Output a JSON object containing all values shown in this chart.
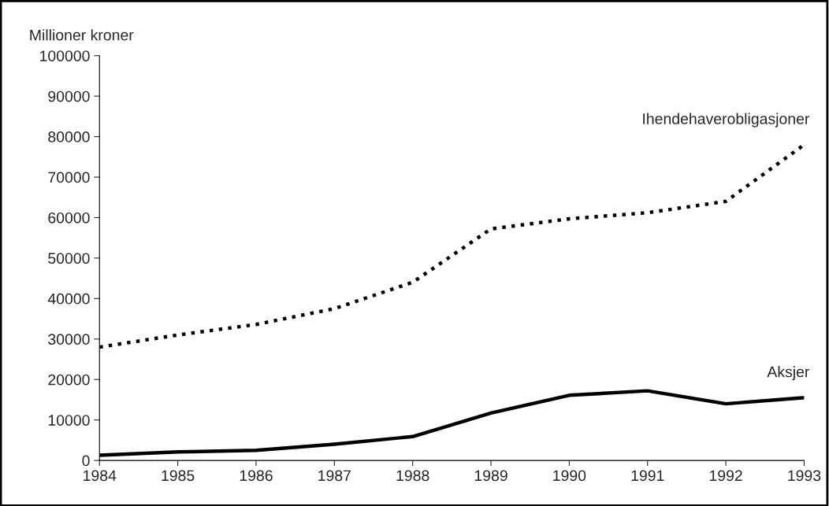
{
  "chart_data": {
    "type": "line",
    "ylabel": "Millioner kroner",
    "x": [
      1984,
      1985,
      1986,
      1987,
      1988,
      1989,
      1990,
      1991,
      1992,
      1993
    ],
    "xlim": [
      1984,
      1993
    ],
    "xticks": [
      1984,
      1985,
      1986,
      1987,
      1988,
      1989,
      1990,
      1991,
      1992,
      1993
    ],
    "ylim": [
      0,
      100000
    ],
    "yticks": [
      0,
      10000,
      20000,
      30000,
      40000,
      50000,
      60000,
      70000,
      80000,
      90000,
      100000
    ],
    "grid": false,
    "legend": false,
    "series": [
      {
        "name": "Ihendehaverobligasjoner",
        "color": "#000000",
        "line_style": "dotted",
        "values": [
          28000,
          31000,
          33600,
          37500,
          44000,
          57200,
          59700,
          61200,
          64000,
          78000
        ]
      },
      {
        "name": "Aksjer",
        "color": "#000000",
        "line_style": "solid",
        "values": [
          1300,
          2100,
          2500,
          4000,
          5900,
          11700,
          16100,
          17200,
          14000,
          15500
        ]
      }
    ]
  }
}
